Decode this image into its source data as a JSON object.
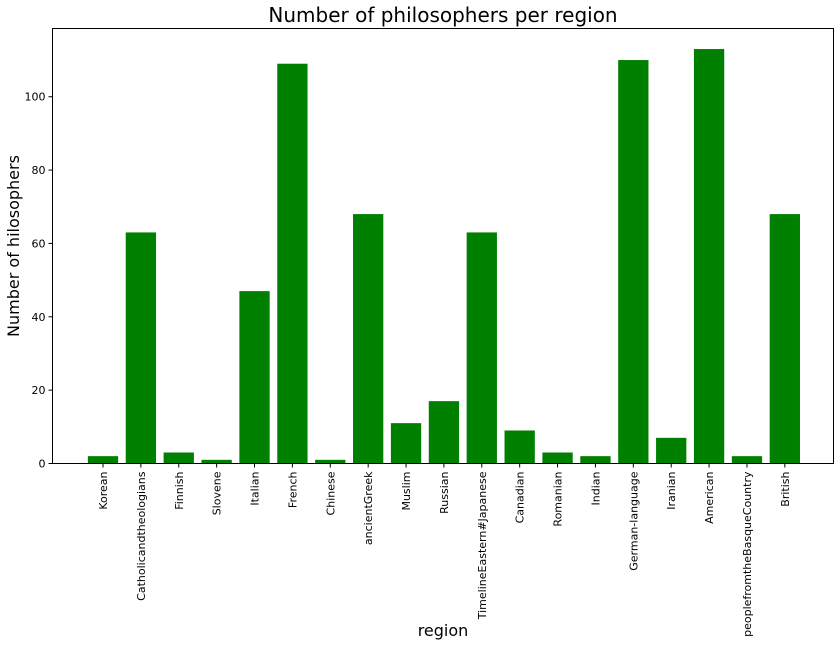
{
  "chart_data": {
    "type": "bar",
    "title": "Number of philosophers per region",
    "xlabel": "region",
    "ylabel": "Number of hilosophers",
    "categories": [
      "Korean",
      "Catholicandtheologians",
      "Finnish",
      "Slovene",
      "Italian",
      "French",
      "Chinese",
      "ancientGreek",
      "Muslim",
      "Russian",
      "TimelineEastern#Japanese",
      "Canadian",
      "Romanian",
      "Indian",
      "German-language",
      "Iranian",
      "American",
      "peoplefromtheBasqueCountry",
      "British"
    ],
    "values": [
      2,
      63,
      3,
      1,
      47,
      109,
      1,
      68,
      11,
      17,
      63,
      9,
      3,
      2,
      110,
      7,
      113,
      2,
      68
    ],
    "ylim": [
      0,
      118.6
    ],
    "yticks": [
      0,
      20,
      40,
      60,
      80,
      100
    ],
    "bar_color": "#008000",
    "grid": false,
    "legend": false
  }
}
